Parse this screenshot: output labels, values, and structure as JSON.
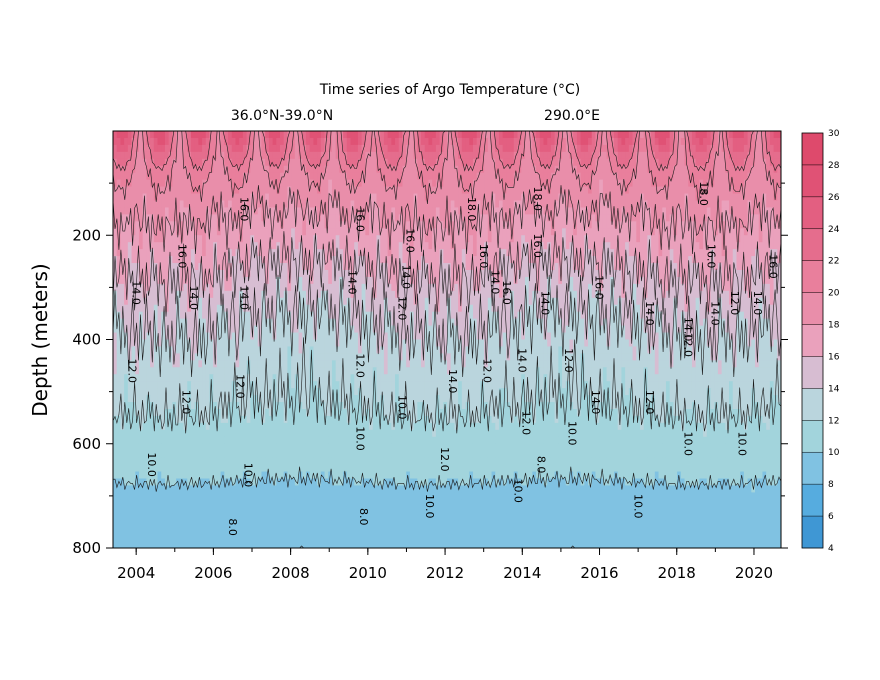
{
  "chart_data": {
    "type": "heatmap",
    "title": "Time series of Argo Temperature (°C)",
    "subtitle_left": "36.0°N-39.0°N",
    "subtitle_right": "290.0°E",
    "ylabel": "Depth (meters)",
    "xlabel": "",
    "xlim": [
      2003.4,
      2020.7
    ],
    "ylim": [
      800,
      0
    ],
    "x_ticks": [
      "2004",
      "2006",
      "2008",
      "2010",
      "2012",
      "2014",
      "2016",
      "2018",
      "2020"
    ],
    "y_ticks": [
      "200",
      "400",
      "600",
      "800"
    ],
    "colorbar": {
      "levels": [
        4,
        6,
        8,
        10,
        12,
        14,
        16,
        18,
        20,
        22,
        24,
        26,
        28,
        30
      ],
      "labels": [
        "4",
        "6",
        "8",
        "10",
        "12",
        "14",
        "16",
        "18",
        "20",
        "22",
        "24",
        "26",
        "28",
        "30"
      ],
      "colors": [
        "#3f97d4",
        "#56acdf",
        "#80c2e2",
        "#a2d4dc",
        "#bad5dd",
        "#d7bdd2",
        "#eaa1bc",
        "#e98eaa",
        "#e97f9c",
        "#e56d8d",
        "#e35f81",
        "#e05275",
        "#de4a6c"
      ]
    },
    "depth_profile": {
      "depth": [
        0,
        80,
        150,
        200,
        250,
        300,
        350,
        400,
        450,
        500,
        550,
        600,
        650,
        700,
        750,
        800
      ],
      "temperature": [
        24.0,
        20.0,
        18.2,
        17.2,
        16.2,
        15.2,
        14.3,
        13.6,
        13.0,
        12.4,
        11.8,
        11.0,
        10.3,
        9.6,
        8.8,
        8.0
      ]
    },
    "contour_labels": [
      {
        "text": "16.0",
        "year": 2006.7,
        "depth": 150
      },
      {
        "text": "16.0",
        "year": 2005.1,
        "depth": 240
      },
      {
        "text": "16.0",
        "year": 2009.7,
        "depth": 170
      },
      {
        "text": "16.0",
        "year": 2011.0,
        "depth": 210
      },
      {
        "text": "18.0",
        "year": 2012.6,
        "depth": 150
      },
      {
        "text": "16.0",
        "year": 2012.9,
        "depth": 240
      },
      {
        "text": "18.0",
        "year": 2014.3,
        "depth": 130
      },
      {
        "text": "16.0",
        "year": 2014.3,
        "depth": 220
      },
      {
        "text": "18.0",
        "year": 2018.6,
        "depth": 120
      },
      {
        "text": "16.0",
        "year": 2018.8,
        "depth": 240
      },
      {
        "text": "16.0",
        "year": 2020.4,
        "depth": 260
      },
      {
        "text": "14.0",
        "year": 2003.9,
        "depth": 310
      },
      {
        "text": "14.0",
        "year": 2005.4,
        "depth": 320
      },
      {
        "text": "14.0",
        "year": 2006.7,
        "depth": 320
      },
      {
        "text": "14.0",
        "year": 2009.5,
        "depth": 290
      },
      {
        "text": "14.0",
        "year": 2010.9,
        "depth": 280
      },
      {
        "text": "14.0",
        "year": 2013.2,
        "depth": 290
      },
      {
        "text": "16.0",
        "year": 2013.5,
        "depth": 310
      },
      {
        "text": "14.0",
        "year": 2014.5,
        "depth": 330
      },
      {
        "text": "16.0",
        "year": 2015.9,
        "depth": 300
      },
      {
        "text": "14.0",
        "year": 2017.2,
        "depth": 350
      },
      {
        "text": "14.0",
        "year": 2018.2,
        "depth": 380
      },
      {
        "text": "14.0",
        "year": 2018.9,
        "depth": 350
      },
      {
        "text": "12.0",
        "year": 2019.4,
        "depth": 330
      },
      {
        "text": "14.0",
        "year": 2020.0,
        "depth": 330
      },
      {
        "text": "12.0",
        "year": 2010.8,
        "depth": 340
      },
      {
        "text": "12.0",
        "year": 2003.8,
        "depth": 460
      },
      {
        "text": "12.0",
        "year": 2005.2,
        "depth": 520
      },
      {
        "text": "12.0",
        "year": 2006.6,
        "depth": 490
      },
      {
        "text": "12.0",
        "year": 2009.7,
        "depth": 450
      },
      {
        "text": "14.0",
        "year": 2012.1,
        "depth": 480
      },
      {
        "text": "12.0",
        "year": 2013.0,
        "depth": 460
      },
      {
        "text": "14.0",
        "year": 2013.9,
        "depth": 440
      },
      {
        "text": "12.0",
        "year": 2015.1,
        "depth": 440
      },
      {
        "text": "14.0",
        "year": 2015.8,
        "depth": 520
      },
      {
        "text": "12.0",
        "year": 2017.2,
        "depth": 520
      },
      {
        "text": "12.0",
        "year": 2018.2,
        "depth": 410
      },
      {
        "text": "10.0",
        "year": 2010.8,
        "depth": 530
      },
      {
        "text": "12.0",
        "year": 2014.0,
        "depth": 560
      },
      {
        "text": "10.0",
        "year": 2015.2,
        "depth": 580
      },
      {
        "text": "10.0",
        "year": 2009.7,
        "depth": 590
      },
      {
        "text": "12.0",
        "year": 2011.9,
        "depth": 630
      },
      {
        "text": "8.0",
        "year": 2014.4,
        "depth": 640
      },
      {
        "text": "10.0",
        "year": 2013.8,
        "depth": 690
      },
      {
        "text": "10.0",
        "year": 2018.2,
        "depth": 600
      },
      {
        "text": "10.0",
        "year": 2019.6,
        "depth": 600
      },
      {
        "text": "10.0",
        "year": 2004.3,
        "depth": 640
      },
      {
        "text": "10.0",
        "year": 2006.8,
        "depth": 660
      },
      {
        "text": "10.0",
        "year": 2011.5,
        "depth": 720
      },
      {
        "text": "10.0",
        "year": 2016.9,
        "depth": 720
      },
      {
        "text": "8.0",
        "year": 2009.8,
        "depth": 740
      },
      {
        "text": "8.0",
        "year": 2006.4,
        "depth": 760
      }
    ]
  }
}
